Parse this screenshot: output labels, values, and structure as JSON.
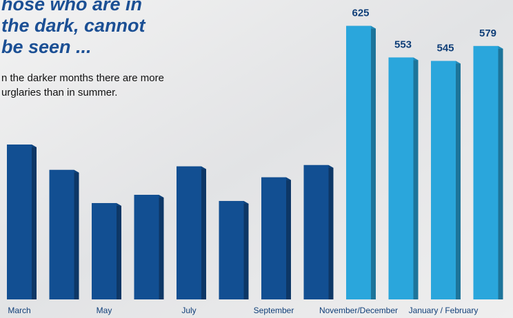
{
  "header": {
    "title_lines": [
      "hose who are in",
      "the dark, cannot",
      "be seen ..."
    ],
    "subtitle_lines": [
      "n the darker months there are more",
      "urglaries than in summer."
    ]
  },
  "chart_data": {
    "type": "bar3d",
    "categories": [
      "March",
      null,
      "May",
      null,
      "July",
      null,
      "September",
      null,
      "November/December",
      null,
      "January / February",
      null
    ],
    "values": [
      354,
      296,
      220,
      239,
      304,
      225,
      279,
      307,
      625,
      553,
      545,
      579
    ],
    "value_labels": [
      null,
      null,
      null,
      null,
      null,
      null,
      null,
      null,
      "625",
      "553",
      "545",
      "579"
    ],
    "colors": [
      "#124f92",
      "#124f92",
      "#124f92",
      "#124f92",
      "#124f92",
      "#124f92",
      "#124f92",
      "#124f92",
      "#2aa6dc",
      "#2aa6dc",
      "#2aa6dc",
      "#2aa6dc"
    ],
    "ylim": [
      0,
      700
    ]
  }
}
